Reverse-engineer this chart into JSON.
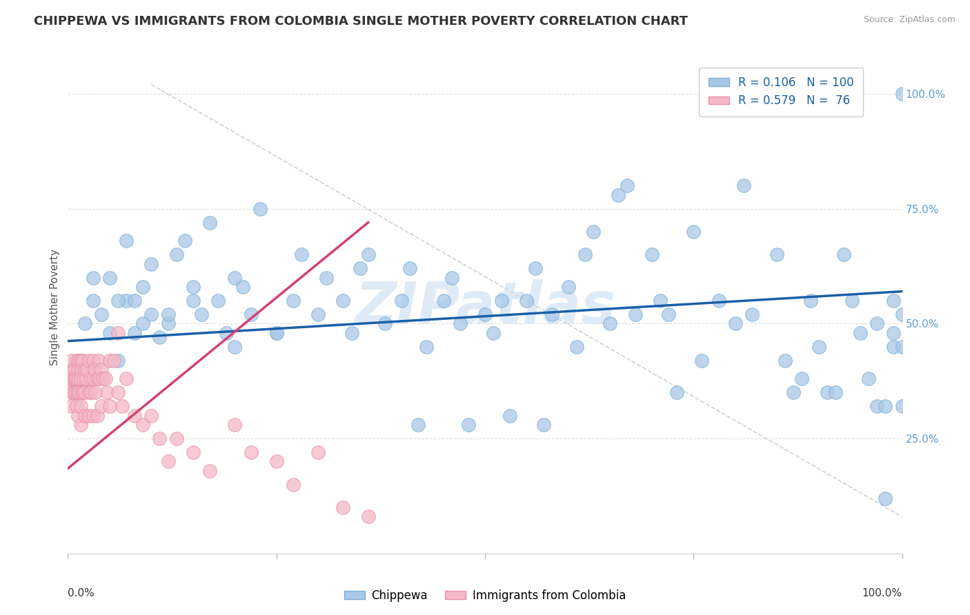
{
  "title": "CHIPPEWA VS IMMIGRANTS FROM COLOMBIA SINGLE MOTHER POVERTY CORRELATION CHART",
  "source": "Source: ZipAtlas.com",
  "ylabel": "Single Mother Poverty",
  "right_yticklabels": [
    "25.0%",
    "50.0%",
    "75.0%",
    "100.0%"
  ],
  "right_ytick_vals": [
    0.25,
    0.5,
    0.75,
    1.0
  ],
  "legend_blue_r": "R = 0.106",
  "legend_blue_n": "N = 100",
  "legend_pink_r": "R = 0.579",
  "legend_pink_n": "N =  76",
  "blue_color": "#a8c8e8",
  "pink_color": "#f4b8c8",
  "blue_edge_color": "#7aafd4",
  "pink_edge_color": "#e890a8",
  "blue_line_color": "#1a5fa8",
  "pink_line_color": "#d44070",
  "ref_line_color": "#cccccc",
  "watermark": "ZIPatlas",
  "watermark_color": "#c8dff0",
  "title_color": "#333333",
  "source_color": "#999999",
  "ylabel_color": "#555555",
  "grid_color": "#dddddd",
  "tick_label_color": "#5b9bd5",
  "bottom_label_color": "#333333",
  "blue_scatter_x": [
    0.02,
    0.03,
    0.04,
    0.05,
    0.05,
    0.06,
    0.07,
    0.07,
    0.08,
    0.08,
    0.09,
    0.1,
    0.1,
    0.11,
    0.12,
    0.13,
    0.14,
    0.15,
    0.16,
    0.17,
    0.18,
    0.19,
    0.2,
    0.21,
    0.22,
    0.23,
    0.25,
    0.27,
    0.28,
    0.3,
    0.31,
    0.33,
    0.34,
    0.35,
    0.36,
    0.38,
    0.4,
    0.41,
    0.42,
    0.43,
    0.45,
    0.46,
    0.47,
    0.48,
    0.5,
    0.51,
    0.52,
    0.53,
    0.55,
    0.56,
    0.57,
    0.58,
    0.6,
    0.61,
    0.62,
    0.63,
    0.65,
    0.66,
    0.67,
    0.68,
    0.7,
    0.71,
    0.72,
    0.73,
    0.75,
    0.76,
    0.78,
    0.8,
    0.81,
    0.82,
    0.85,
    0.86,
    0.87,
    0.88,
    0.89,
    0.9,
    0.91,
    0.92,
    0.93,
    0.94,
    0.95,
    0.96,
    0.97,
    0.97,
    0.98,
    0.98,
    0.99,
    0.99,
    0.99,
    1.0,
    1.0,
    1.0,
    1.0,
    0.03,
    0.06,
    0.09,
    0.12,
    0.15,
    0.2,
    0.25
  ],
  "blue_scatter_y": [
    0.5,
    0.55,
    0.52,
    0.48,
    0.6,
    0.42,
    0.55,
    0.68,
    0.48,
    0.55,
    0.58,
    0.52,
    0.63,
    0.47,
    0.5,
    0.65,
    0.68,
    0.55,
    0.52,
    0.72,
    0.55,
    0.48,
    0.6,
    0.58,
    0.52,
    0.75,
    0.48,
    0.55,
    0.65,
    0.52,
    0.6,
    0.55,
    0.48,
    0.62,
    0.65,
    0.5,
    0.55,
    0.62,
    0.28,
    0.45,
    0.55,
    0.6,
    0.5,
    0.28,
    0.52,
    0.48,
    0.55,
    0.3,
    0.55,
    0.62,
    0.28,
    0.52,
    0.58,
    0.45,
    0.65,
    0.7,
    0.5,
    0.78,
    0.8,
    0.52,
    0.65,
    0.55,
    0.52,
    0.35,
    0.7,
    0.42,
    0.55,
    0.5,
    0.8,
    0.52,
    0.65,
    0.42,
    0.35,
    0.38,
    0.55,
    0.45,
    0.35,
    0.35,
    0.65,
    0.55,
    0.48,
    0.38,
    0.32,
    0.5,
    0.32,
    0.12,
    0.48,
    0.55,
    0.45,
    0.45,
    0.52,
    1.0,
    0.32,
    0.6,
    0.55,
    0.5,
    0.52,
    0.58,
    0.45,
    0.48
  ],
  "pink_scatter_x": [
    0.002,
    0.003,
    0.004,
    0.005,
    0.005,
    0.005,
    0.006,
    0.007,
    0.008,
    0.008,
    0.009,
    0.01,
    0.01,
    0.01,
    0.01,
    0.012,
    0.012,
    0.012,
    0.013,
    0.013,
    0.014,
    0.015,
    0.015,
    0.015,
    0.015,
    0.016,
    0.017,
    0.018,
    0.018,
    0.019,
    0.02,
    0.02,
    0.02,
    0.022,
    0.023,
    0.025,
    0.025,
    0.025,
    0.027,
    0.028,
    0.03,
    0.03,
    0.03,
    0.032,
    0.033,
    0.035,
    0.035,
    0.037,
    0.038,
    0.04,
    0.04,
    0.042,
    0.045,
    0.047,
    0.05,
    0.05,
    0.055,
    0.06,
    0.06,
    0.065,
    0.07,
    0.08,
    0.09,
    0.1,
    0.11,
    0.12,
    0.13,
    0.15,
    0.17,
    0.2,
    0.22,
    0.25,
    0.27,
    0.3,
    0.33,
    0.36
  ],
  "pink_scatter_y": [
    0.38,
    0.35,
    0.4,
    0.38,
    0.32,
    0.42,
    0.35,
    0.38,
    0.4,
    0.35,
    0.38,
    0.42,
    0.38,
    0.32,
    0.35,
    0.4,
    0.35,
    0.3,
    0.38,
    0.42,
    0.35,
    0.42,
    0.38,
    0.32,
    0.28,
    0.4,
    0.35,
    0.42,
    0.35,
    0.38,
    0.4,
    0.35,
    0.3,
    0.38,
    0.4,
    0.42,
    0.35,
    0.3,
    0.38,
    0.35,
    0.42,
    0.38,
    0.3,
    0.4,
    0.35,
    0.38,
    0.3,
    0.42,
    0.38,
    0.4,
    0.32,
    0.38,
    0.38,
    0.35,
    0.42,
    0.32,
    0.42,
    0.48,
    0.35,
    0.32,
    0.38,
    0.3,
    0.28,
    0.3,
    0.25,
    0.2,
    0.25,
    0.22,
    0.18,
    0.28,
    0.22,
    0.2,
    0.15,
    0.22,
    0.1,
    0.08
  ],
  "blue_line_x": [
    0.0,
    1.0
  ],
  "blue_line_y": [
    0.462,
    0.57
  ],
  "pink_line_x": [
    0.0,
    0.36
  ],
  "pink_line_y": [
    0.185,
    0.72
  ],
  "ref_line_x": [
    0.1,
    1.0
  ],
  "ref_line_y": [
    1.02,
    0.08
  ],
  "xlim": [
    0.0,
    1.0
  ],
  "ylim": [
    0.0,
    1.07
  ]
}
